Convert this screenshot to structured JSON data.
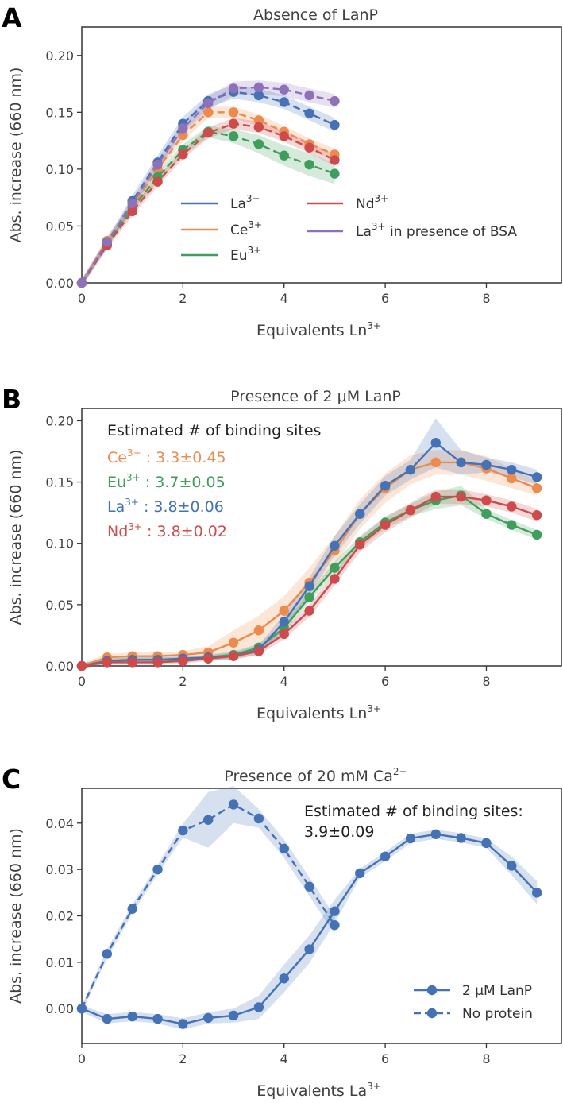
{
  "chart_data": [
    {
      "type": "line",
      "panel": "A",
      "title": "Absence of LanP",
      "xlabel": "Equivalents Ln",
      "xlabel_sup": "3+",
      "ylabel": "Abs. increase (660 nm)",
      "xlim": [
        0,
        9.5
      ],
      "ylim": [
        0,
        0.225
      ],
      "xticks": [
        0,
        2,
        4,
        6,
        8
      ],
      "yticks": [
        0.0,
        0.05,
        0.1,
        0.15,
        0.2
      ],
      "ytick_labels": [
        "0.00",
        "0.05",
        "0.10",
        "0.15",
        "0.20"
      ],
      "legend": [
        {
          "label": "La",
          "sup": "3+",
          "suffix": "",
          "series": "La"
        },
        {
          "label": "Ce",
          "sup": "3+",
          "suffix": "",
          "series": "Ce"
        },
        {
          "label": "Eu",
          "sup": "3+",
          "suffix": "",
          "series": "Eu"
        },
        {
          "label": "Nd",
          "sup": "3+",
          "suffix": "",
          "series": "Nd"
        },
        {
          "label": "La",
          "sup": "3+",
          "suffix": "  in presence of BSA",
          "series": "La_BSA"
        }
      ],
      "series": [
        {
          "name": "La",
          "color": "#4472b4",
          "style": "dashed",
          "x": [
            0,
            0.5,
            1,
            1.5,
            2,
            2.5,
            3,
            3.5,
            4,
            4.5,
            5
          ],
          "y": [
            0,
            0.034,
            0.072,
            0.106,
            0.14,
            0.16,
            0.168,
            0.165,
            0.159,
            0.149,
            0.139
          ],
          "band": [
            0.003,
            0.004,
            0.005,
            0.006,
            0.006,
            0.006,
            0.006,
            0.006,
            0.006,
            0.006,
            0.006
          ]
        },
        {
          "name": "Ce",
          "color": "#ed8b4e",
          "style": "dashed",
          "x": [
            0,
            0.5,
            1,
            1.5,
            2,
            2.5,
            3,
            3.5,
            4,
            4.5,
            5
          ],
          "y": [
            0,
            0.037,
            0.067,
            0.1,
            0.13,
            0.15,
            0.15,
            0.143,
            0.133,
            0.122,
            0.113
          ],
          "band": [
            0.003,
            0.004,
            0.004,
            0.005,
            0.005,
            0.005,
            0.005,
            0.005,
            0.005,
            0.005,
            0.005
          ]
        },
        {
          "name": "Eu",
          "color": "#3f9e5c",
          "style": "dashed",
          "x": [
            0,
            0.5,
            1,
            1.5,
            2,
            2.5,
            3,
            3.5,
            4,
            4.5,
            5
          ],
          "y": [
            0,
            0.035,
            0.066,
            0.093,
            0.117,
            0.133,
            0.129,
            0.122,
            0.112,
            0.104,
            0.096
          ],
          "band": [
            0.003,
            0.003,
            0.004,
            0.004,
            0.005,
            0.005,
            0.006,
            0.008,
            0.009,
            0.01,
            0.009
          ]
        },
        {
          "name": "Nd",
          "color": "#cf4a4a",
          "style": "dashed",
          "x": [
            0,
            0.5,
            1,
            1.5,
            2,
            2.5,
            3,
            3.5,
            4,
            4.5,
            5
          ],
          "y": [
            0,
            0.033,
            0.063,
            0.089,
            0.113,
            0.132,
            0.14,
            0.137,
            0.129,
            0.119,
            0.108
          ],
          "band": [
            0.003,
            0.003,
            0.004,
            0.004,
            0.004,
            0.005,
            0.005,
            0.005,
            0.005,
            0.005,
            0.005
          ]
        },
        {
          "name": "La_BSA",
          "color": "#8e72b9",
          "style": "dashed",
          "x": [
            0,
            0.5,
            1,
            1.5,
            2,
            2.5,
            3,
            3.5,
            4,
            4.5,
            5
          ],
          "y": [
            0,
            0.036,
            0.07,
            0.104,
            0.136,
            0.158,
            0.171,
            0.172,
            0.17,
            0.165,
            0.16
          ],
          "band": [
            0.003,
            0.004,
            0.004,
            0.005,
            0.005,
            0.006,
            0.006,
            0.006,
            0.006,
            0.006,
            0.006
          ]
        }
      ]
    },
    {
      "type": "line",
      "panel": "B",
      "title": "Presence of 2 μM LanP",
      "xlabel": "Equivalents Ln",
      "xlabel_sup": "3+",
      "ylabel": "Abs. increase (660 nm)",
      "xlim": [
        0,
        9.5
      ],
      "ylim": [
        0,
        0.21
      ],
      "xticks": [
        0,
        2,
        4,
        6,
        8
      ],
      "yticks": [
        0.0,
        0.05,
        0.1,
        0.15,
        0.2
      ],
      "ytick_labels": [
        "0.00",
        "0.05",
        "0.10",
        "0.15",
        "0.20"
      ],
      "annotation_title": "Estimated # of binding sites",
      "annotations": [
        {
          "ion": "Ce",
          "sup": "3+",
          "text": " : 3.3±0.45",
          "series": "Ce"
        },
        {
          "ion": "Eu",
          "sup": "3+",
          "text": " : 3.7±0.05",
          "series": "Eu"
        },
        {
          "ion": "La",
          "sup": "3+",
          "text": " : 3.8±0.06",
          "series": "La"
        },
        {
          "ion": "Nd",
          "sup": "3+",
          "text": " : 3.8±0.02",
          "series": "Nd"
        }
      ],
      "series": [
        {
          "name": "Ce",
          "color": "#ed8b4e",
          "style": "solid",
          "x": [
            0,
            0.5,
            1,
            1.5,
            2,
            2.5,
            3,
            3.5,
            4,
            4.5,
            5,
            5.5,
            6,
            6.5,
            7,
            7.5,
            8,
            8.5,
            9
          ],
          "y": [
            0,
            0.007,
            0.008,
            0.008,
            0.009,
            0.011,
            0.019,
            0.029,
            0.045,
            0.068,
            0.094,
            0.124,
            0.145,
            0.16,
            0.166,
            0.166,
            0.161,
            0.153,
            0.145
          ],
          "band": [
            0.002,
            0.003,
            0.003,
            0.003,
            0.003,
            0.005,
            0.01,
            0.012,
            0.012,
            0.012,
            0.012,
            0.012,
            0.012,
            0.012,
            0.01,
            0.01,
            0.01,
            0.008,
            0.006
          ]
        },
        {
          "name": "Eu",
          "color": "#3f9e5c",
          "style": "solid",
          "x": [
            0,
            0.5,
            1,
            1.5,
            2,
            2.5,
            3,
            3.5,
            4,
            4.5,
            5,
            5.5,
            6,
            6.5,
            7,
            7.5,
            8,
            8.5,
            9
          ],
          "y": [
            0,
            0.004,
            0.005,
            0.005,
            0.005,
            0.007,
            0.009,
            0.015,
            0.031,
            0.056,
            0.08,
            0.101,
            0.117,
            0.127,
            0.135,
            0.139,
            0.124,
            0.115,
            0.107
          ],
          "band": [
            0.002,
            0.002,
            0.002,
            0.002,
            0.002,
            0.002,
            0.003,
            0.003,
            0.004,
            0.004,
            0.005,
            0.005,
            0.005,
            0.005,
            0.007,
            0.008,
            0.004,
            0.004,
            0.004
          ]
        },
        {
          "name": "La",
          "color": "#4472b4",
          "style": "solid",
          "x": [
            0,
            0.5,
            1,
            1.5,
            2,
            2.5,
            3,
            3.5,
            4,
            4.5,
            5,
            5.5,
            6,
            6.5,
            7,
            7.5,
            8,
            8.5,
            9
          ],
          "y": [
            0,
            0.004,
            0.005,
            0.005,
            0.006,
            0.007,
            0.008,
            0.013,
            0.036,
            0.065,
            0.098,
            0.124,
            0.147,
            0.16,
            0.182,
            0.166,
            0.164,
            0.16,
            0.154
          ],
          "band": [
            0.002,
            0.002,
            0.002,
            0.002,
            0.002,
            0.002,
            0.003,
            0.004,
            0.006,
            0.007,
            0.008,
            0.008,
            0.008,
            0.008,
            0.02,
            0.01,
            0.006,
            0.006,
            0.006
          ]
        },
        {
          "name": "Nd",
          "color": "#cf4a4a",
          "style": "solid",
          "x": [
            0,
            0.5,
            1,
            1.5,
            2,
            2.5,
            3,
            3.5,
            4,
            4.5,
            5,
            5.5,
            6,
            6.5,
            7,
            7.5,
            8,
            8.5,
            9
          ],
          "y": [
            0,
            0.003,
            0.003,
            0.003,
            0.004,
            0.006,
            0.008,
            0.012,
            0.026,
            0.045,
            0.071,
            0.099,
            0.115,
            0.127,
            0.138,
            0.138,
            0.135,
            0.13,
            0.123
          ],
          "band": [
            0.002,
            0.002,
            0.002,
            0.002,
            0.002,
            0.002,
            0.002,
            0.003,
            0.004,
            0.005,
            0.005,
            0.006,
            0.006,
            0.006,
            0.006,
            0.006,
            0.005,
            0.005,
            0.005
          ]
        }
      ]
    },
    {
      "type": "line",
      "panel": "C",
      "title": "Presence of 20 mM Ca",
      "title_sup": "2+",
      "xlabel": "Equivalents La",
      "xlabel_sup": "3+",
      "ylabel": "Abs. increase (660 nm)",
      "xlim": [
        0,
        9.5
      ],
      "ylim": [
        -0.0075,
        0.0475
      ],
      "xticks": [
        0,
        2,
        4,
        6,
        8
      ],
      "yticks": [
        0.0,
        0.01,
        0.02,
        0.03,
        0.04
      ],
      "ytick_labels": [
        "0.00",
        "0.01",
        "0.02",
        "0.03",
        "0.04"
      ],
      "annotation_lines": [
        "Estimated # of binding sites:",
        "3.9±0.09"
      ],
      "legend": [
        {
          "label": "2 μM LanP",
          "series": "LanP"
        },
        {
          "label": "No protein",
          "series": "NoProtein"
        }
      ],
      "series": [
        {
          "name": "LanP",
          "color": "#4472b4",
          "style": "solid",
          "x": [
            0,
            0.5,
            1,
            1.5,
            2,
            2.5,
            3,
            3.5,
            4,
            4.5,
            5,
            5.5,
            6,
            6.5,
            7,
            7.5,
            8,
            8.5,
            9
          ],
          "y": [
            0,
            -0.0022,
            -0.0017,
            -0.0022,
            -0.0033,
            -0.002,
            -0.0015,
            0.0003,
            0.0065,
            0.0128,
            0.021,
            0.0292,
            0.0328,
            0.0367,
            0.0376,
            0.0368,
            0.0357,
            0.0308,
            0.025
          ],
          "band": [
            0.0007,
            0.001,
            0.001,
            0.001,
            0.0012,
            0.0012,
            0.0015,
            0.0025,
            0.003,
            0.003,
            0.0025,
            0.001,
            0.001,
            0.001,
            0.001,
            0.001,
            0.001,
            0.002,
            0.0025
          ]
        },
        {
          "name": "NoProtein",
          "color": "#4472b4",
          "style": "dashed",
          "x": [
            0,
            0.5,
            1,
            1.5,
            2,
            2.5,
            3,
            3.5,
            4,
            4.5,
            5
          ],
          "y": [
            0,
            0.0118,
            0.0215,
            0.03,
            0.0384,
            0.0407,
            0.044,
            0.041,
            0.0345,
            0.0263,
            0.018
          ],
          "band": [
            0.0007,
            0.001,
            0.001,
            0.001,
            0.0015,
            0.006,
            0.004,
            0.002,
            0.002,
            0.002,
            0.002
          ]
        }
      ]
    }
  ]
}
